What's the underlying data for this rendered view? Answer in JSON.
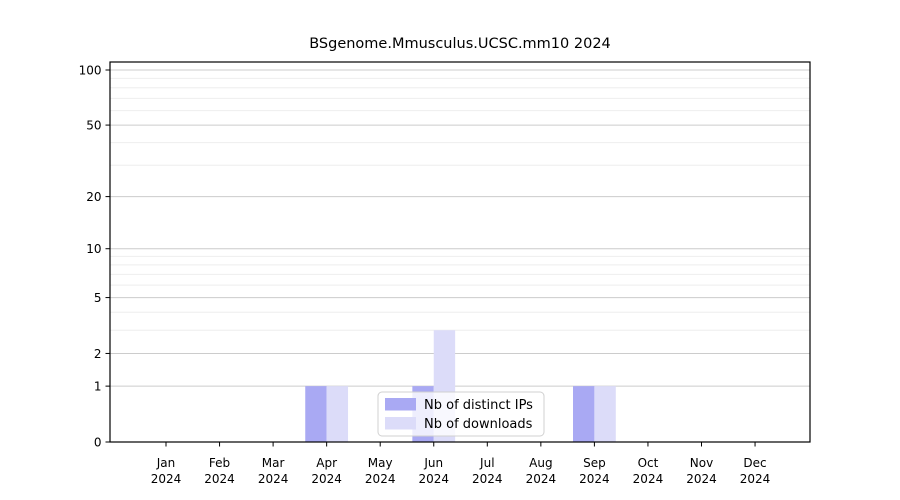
{
  "title": "BSgenome.Mmusculus.UCSC.mm10 2024",
  "chart_data": {
    "type": "bar",
    "title": "BSgenome.Mmusculus.UCSC.mm10 2024",
    "categories": [
      "Jan 2024",
      "Feb 2024",
      "Mar 2024",
      "Apr 2024",
      "May 2024",
      "Jun 2024",
      "Jul 2024",
      "Aug 2024",
      "Sep 2024",
      "Oct 2024",
      "Nov 2024",
      "Dec 2024"
    ],
    "series": [
      {
        "name": "Nb of distinct IPs",
        "color": "#a9a9f3",
        "values": [
          0,
          0,
          0,
          1,
          0,
          1,
          0,
          0,
          1,
          0,
          0,
          0
        ]
      },
      {
        "name": "Nb of downloads",
        "color": "#dcdcf9",
        "values": [
          0,
          0,
          0,
          1,
          0,
          3,
          0,
          0,
          1,
          0,
          0,
          0
        ]
      }
    ],
    "xlabel": "",
    "ylabel": "",
    "y_scale": "log1p",
    "ylim": [
      0,
      100
    ],
    "y_ticks": [
      0,
      1,
      2,
      5,
      10,
      20,
      50,
      100
    ],
    "y_minor_gridlines": [
      3,
      4,
      6,
      7,
      8,
      9,
      30,
      40,
      60,
      70,
      80,
      90
    ],
    "grid": true,
    "legend_position": "bottom-center-inside",
    "colors": {
      "grid_major": "#cccccc",
      "grid_minor": "#eeeeee",
      "axis": "#000000",
      "legend_border": "#d0d0d0",
      "legend_bg": "#ffffff"
    }
  }
}
